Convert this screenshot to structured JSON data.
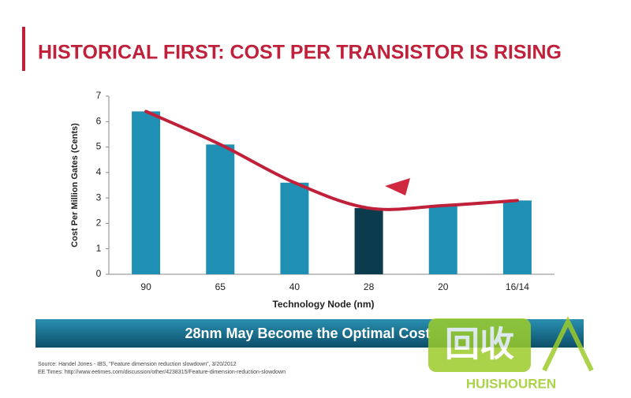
{
  "chart_data": {
    "type": "bar",
    "title": "HISTORICAL FIRST: COST PER TRANSISTOR IS RISING",
    "y_label": "Cost Per Million Gates (Cents)",
    "x_label": "Technology Node (nm)",
    "categories": [
      "90",
      "65",
      "40",
      "28",
      "20",
      "16/14"
    ],
    "values": [
      6.4,
      5.1,
      3.6,
      2.6,
      2.7,
      2.9
    ],
    "colors": [
      "#1f8fb4",
      "#1f8fb4",
      "#1f8fb4",
      "#0b3c4e",
      "#1f8fb4",
      "#1f8fb4"
    ],
    "trend_color": "#c0203a",
    "ylim": [
      0,
      7
    ],
    "yticks": [
      0,
      1,
      2,
      3,
      4,
      5,
      6,
      7
    ],
    "banner": "28nm May Become the Optimal Cost",
    "sources": [
      "Source: Handel Jones - IBS, \"Feature dimension reduction slowdown\", 3/20/2012",
      "EE Times: http://www.eetimes.com/discussion/other/4238315/Feature-dimension-reduction-slowdown"
    ],
    "watermark": {
      "logo": "回收",
      "text": "HUISHOUREN"
    }
  }
}
